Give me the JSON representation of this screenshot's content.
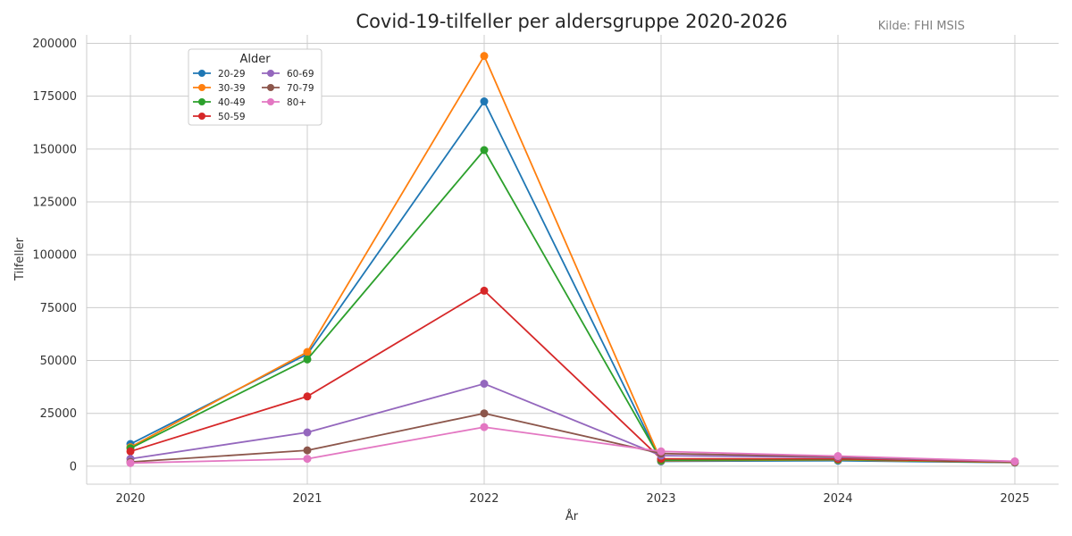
{
  "chart_data": {
    "type": "line",
    "title": "Covid-19-tilfeller per aldersgruppe 2020-2026",
    "source": "Kilde: FHI MSIS",
    "xlabel": "År",
    "ylabel": "Tilfeller",
    "x": [
      "2020",
      "2021",
      "2022",
      "2023",
      "2024",
      "2025"
    ],
    "ylim": [
      -8500,
      204000
    ],
    "yticks": [
      0,
      25000,
      50000,
      75000,
      100000,
      125000,
      150000,
      175000,
      200000
    ],
    "grid": true,
    "legend": {
      "title": "Alder",
      "placement": "top-left",
      "columns": 2
    },
    "series": [
      {
        "name": "20-29",
        "color": "#1f77b4",
        "values": [
          10500,
          53000,
          172500,
          2300,
          2600,
          1700
        ]
      },
      {
        "name": "30-39",
        "color": "#ff7f0e",
        "values": [
          9000,
          54000,
          194000,
          2600,
          3000,
          1800
        ]
      },
      {
        "name": "40-49",
        "color": "#2ca02c",
        "values": [
          8500,
          50500,
          149500,
          2800,
          3200,
          1900
        ]
      },
      {
        "name": "50-59",
        "color": "#d62728",
        "values": [
          7000,
          33000,
          83000,
          3500,
          3500,
          2000
        ]
      },
      {
        "name": "60-69",
        "color": "#9467bd",
        "values": [
          3500,
          16000,
          39000,
          5000,
          4200,
          2100
        ]
      },
      {
        "name": "70-79",
        "color": "#8c564b",
        "values": [
          2000,
          7500,
          25000,
          6000,
          4500,
          2200
        ]
      },
      {
        "name": "80+",
        "color": "#e377c2",
        "values": [
          1500,
          3500,
          18500,
          7000,
          4800,
          2300
        ]
      }
    ]
  }
}
